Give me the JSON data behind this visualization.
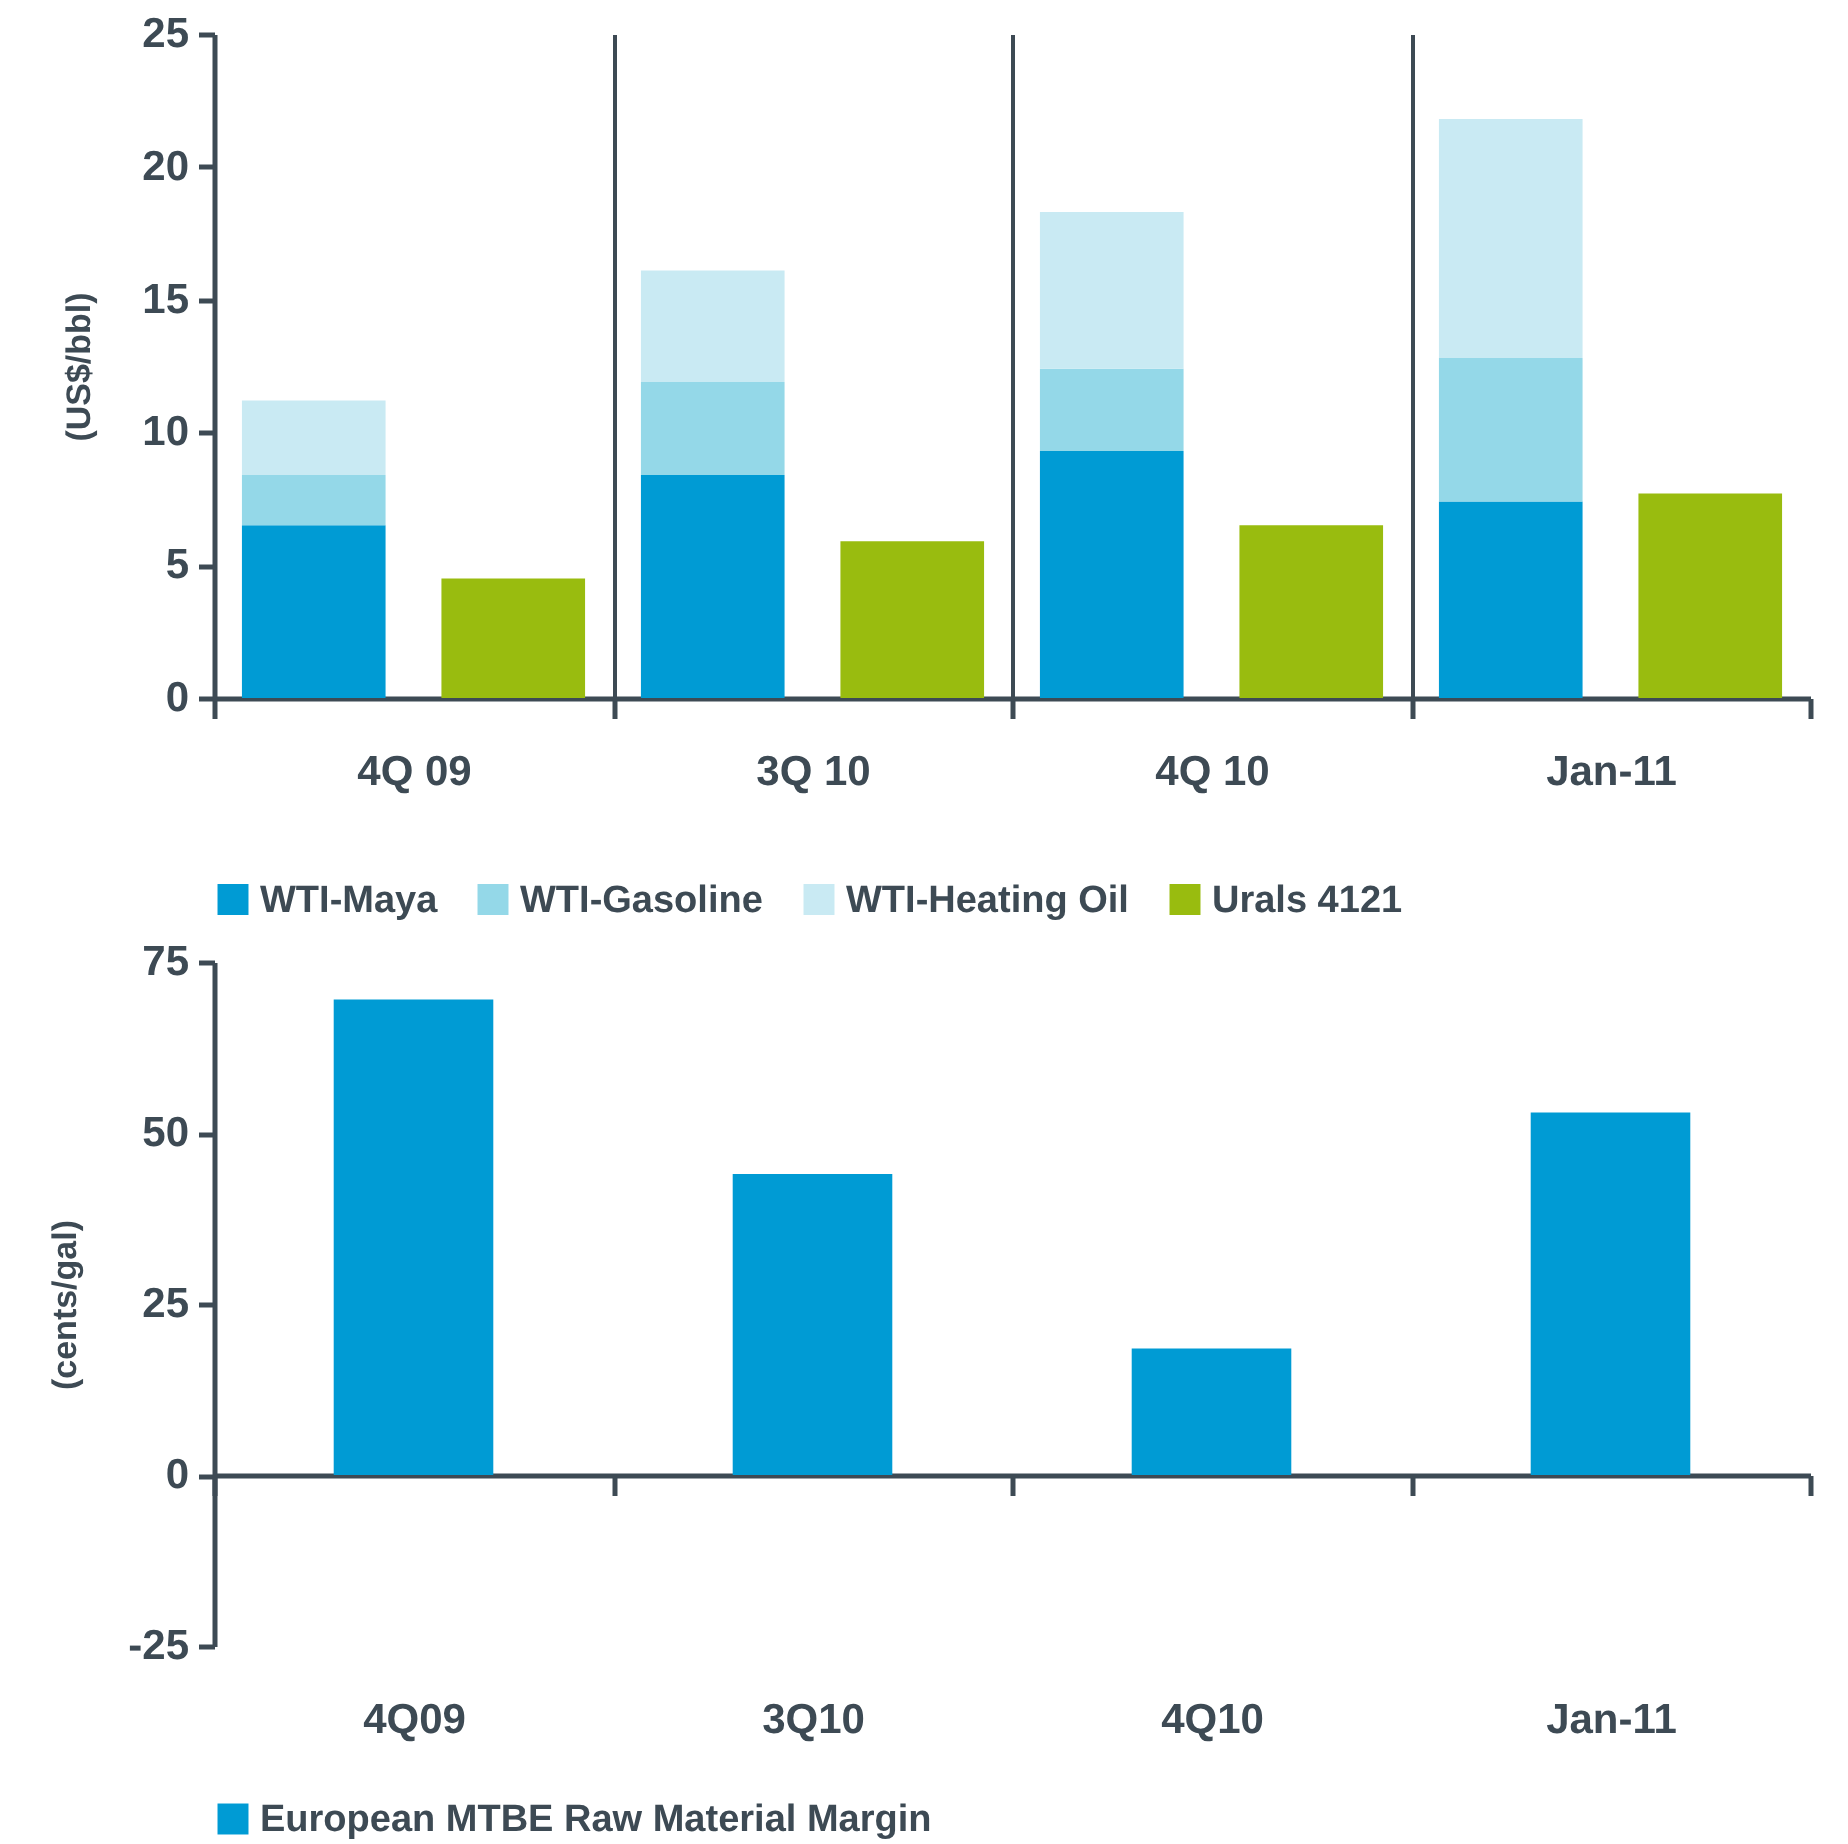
{
  "chart_data": [
    {
      "type": "bar",
      "stacked": true,
      "categories": [
        "4Q 09",
        null,
        "3Q 10",
        null,
        "4Q 10",
        null,
        "Jan-11",
        null
      ],
      "ylabel": "(US$/bbl)",
      "ylim": [
        0,
        25
      ],
      "yticks": [
        0,
        5,
        10,
        15,
        20,
        25
      ],
      "grid": "x",
      "legend": "bottom",
      "series": [
        {
          "name": "WTI-Maya",
          "color": "#009bd4",
          "values": [
            6.5,
            null,
            8.4,
            null,
            9.3,
            null,
            7.4,
            null
          ]
        },
        {
          "name": "WTI-Gasoline",
          "color": "#94d8e8",
          "values": [
            1.9,
            null,
            3.5,
            null,
            3.1,
            null,
            5.4,
            null
          ]
        },
        {
          "name": "WTI-Heating Oil",
          "color": "#c9eaf3",
          "values": [
            2.8,
            null,
            4.2,
            null,
            5.9,
            null,
            9.0,
            null
          ]
        },
        {
          "name": "Urals 4121",
          "color": "#99bc0f",
          "values": [
            null,
            4.5,
            null,
            5.9,
            null,
            6.5,
            null,
            7.7
          ]
        }
      ]
    },
    {
      "type": "bar",
      "categories": [
        "4Q09",
        "3Q10",
        "4Q10",
        "Jan-11"
      ],
      "ylabel": "(cents/gal)",
      "ylim": [
        -25,
        75
      ],
      "yticks": [
        -25,
        0,
        25,
        50,
        75
      ],
      "legend": "bottom",
      "series": [
        {
          "name": "European MTBE Raw Material Margin",
          "color": "#009bd4",
          "values": [
            69.5,
            44,
            18.5,
            53
          ]
        }
      ]
    }
  ]
}
